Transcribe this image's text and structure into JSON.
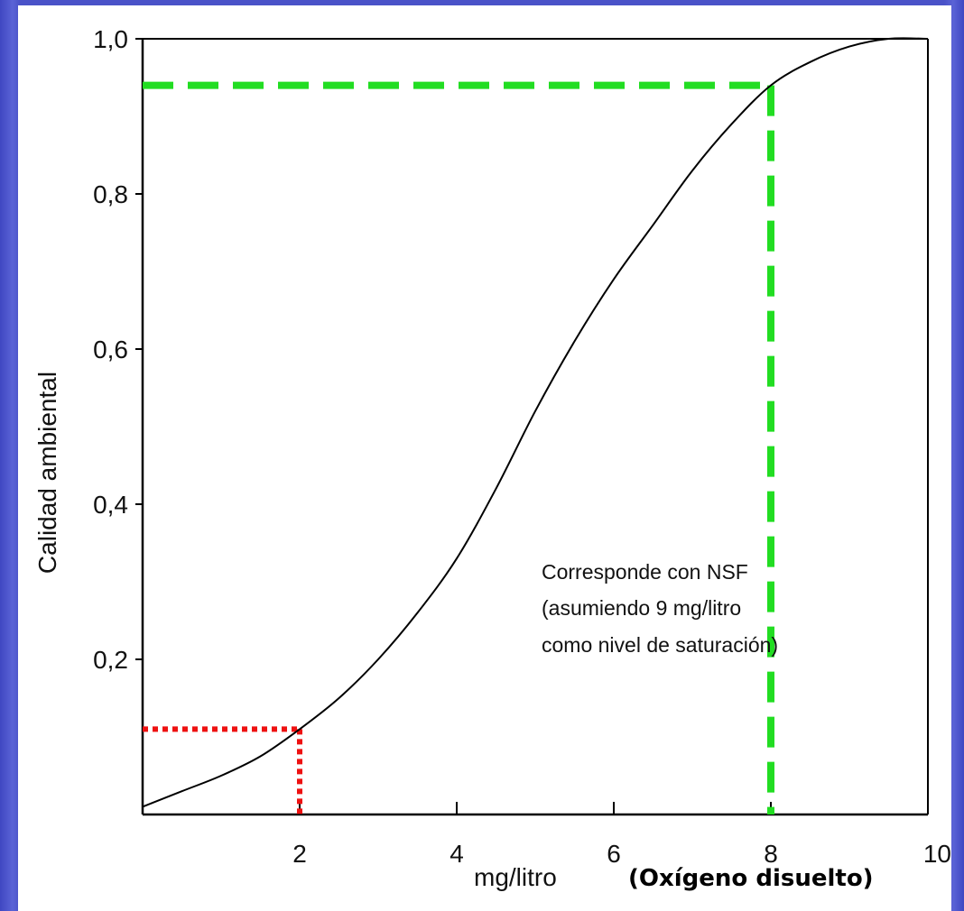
{
  "colors": {
    "background": "#4a52c8",
    "panel": "#ffffff",
    "curve": "#000000",
    "green_guide": "#22dd22",
    "red_guide": "#ee1111"
  },
  "chart_data": {
    "type": "line",
    "title": "",
    "ylabel": "Calidad ambiental",
    "xlabel": "mg/litro",
    "xlabel_extra": "(Oxígeno disuelto)",
    "xlim": [
      0,
      10
    ],
    "ylim": [
      0,
      1.0
    ],
    "x_ticks": [
      {
        "value": 2,
        "label": "2"
      },
      {
        "value": 4,
        "label": "4"
      },
      {
        "value": 6,
        "label": "6"
      },
      {
        "value": 8,
        "label": "8"
      },
      {
        "value": 10,
        "label": "10"
      }
    ],
    "y_ticks": [
      {
        "value": 0.2,
        "label": "0,2"
      },
      {
        "value": 0.4,
        "label": "0,4"
      },
      {
        "value": 0.6,
        "label": "0,6"
      },
      {
        "value": 0.8,
        "label": "0,8"
      },
      {
        "value": 1.0,
        "label": "1,0"
      }
    ],
    "series": [
      {
        "x": [
          0,
          0.5,
          1,
          1.5,
          2,
          2.5,
          3,
          3.5,
          4,
          4.5,
          5,
          5.5,
          6,
          6.5,
          7,
          7.5,
          8,
          8.5,
          9,
          9.5,
          10
        ],
        "y": [
          0.01,
          0.03,
          0.05,
          0.075,
          0.11,
          0.15,
          0.2,
          0.26,
          0.33,
          0.42,
          0.52,
          0.61,
          0.69,
          0.76,
          0.83,
          0.89,
          0.94,
          0.97,
          0.99,
          1.0,
          1.0
        ]
      }
    ],
    "guides": [
      {
        "style": "dashed",
        "color": "#22dd22",
        "x": 8,
        "y": 0.94
      },
      {
        "style": "dotted",
        "color": "#ee1111",
        "x": 2,
        "y": 0.11
      }
    ],
    "annotation": {
      "lines": [
        "Corresponde con NSF",
        "(asumiendo 9 mg/litro",
        "como nivel de saturación)"
      ],
      "x": 2.55,
      "y": 0.4
    },
    "grid": false
  }
}
